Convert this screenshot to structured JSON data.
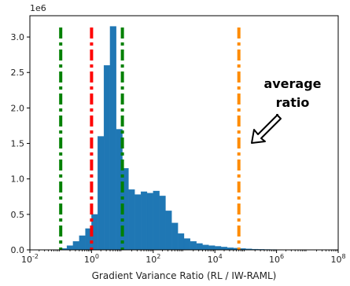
{
  "chart_data": {
    "type": "histogram",
    "x_scale": "log",
    "xlim": [
      0.01,
      100000000
    ],
    "ylim": [
      0,
      3300000
    ],
    "y_multiplier_label": "1e6",
    "xlabel": "Gradient Variance Ratio (RL / IW-RAML)",
    "ylabel": "",
    "x_ticks": [
      0.01,
      1,
      100,
      10000,
      1000000,
      100000000
    ],
    "x_tick_labels": [
      "10^-2",
      "10^0",
      "10^2",
      "10^4",
      "10^6",
      "10^8"
    ],
    "y_ticks": [
      0,
      500000,
      1000000,
      1500000,
      2000000,
      2500000,
      3000000
    ],
    "y_tick_labels": [
      "0.0",
      "0.5",
      "1.0",
      "1.5",
      "2.0",
      "2.5",
      "3.0"
    ],
    "bar_color": "#1f77b4",
    "bins_log10_left": [
      -1.0,
      -0.8,
      -0.6,
      -0.4,
      -0.2,
      0.0,
      0.2,
      0.4,
      0.6,
      0.8,
      1.0,
      1.2,
      1.4,
      1.6,
      1.8,
      2.0,
      2.2,
      2.4,
      2.6,
      2.8,
      3.0,
      3.2,
      3.4,
      3.6,
      3.8,
      4.0,
      4.2,
      4.4,
      4.6,
      4.8,
      5.0,
      5.2,
      5.4,
      5.6,
      5.8,
      6.0,
      6.2,
      6.4,
      6.6,
      6.8,
      7.0,
      7.2,
      7.4,
      7.6
    ],
    "bins_log10_width": 0.2,
    "counts": [
      20000,
      60000,
      120000,
      200000,
      300000,
      500000,
      1600000,
      2600000,
      3150000,
      1700000,
      1150000,
      850000,
      780000,
      820000,
      800000,
      830000,
      760000,
      550000,
      380000,
      230000,
      160000,
      120000,
      90000,
      70000,
      60000,
      50000,
      40000,
      30000,
      25000,
      20000,
      15000,
      10000,
      8000,
      6000,
      5000,
      4000,
      3000,
      2000,
      2000,
      1500,
      1000,
      1000,
      800,
      500
    ],
    "vlines": [
      {
        "x": 0.1,
        "color": "#008000"
      },
      {
        "x": 1,
        "color": "#ff0000"
      },
      {
        "x": 10,
        "color": "#008000"
      },
      {
        "x": 60000,
        "color": "#ff8c00"
      }
    ]
  },
  "annotation": {
    "text_line1": "average",
    "text_line2": "ratio"
  }
}
